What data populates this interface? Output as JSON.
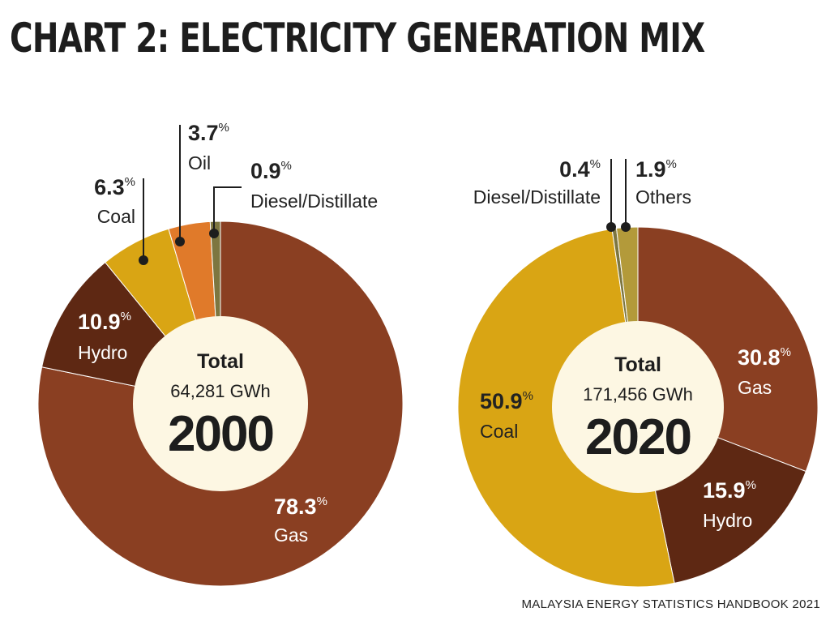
{
  "title": "CHART 2: ELECTRICITY GENERATION MIX",
  "source": "MALAYSIA ENERGY STATISTICS HANDBOOK 2021",
  "chart_data": [
    {
      "type": "pie",
      "year": "2000",
      "center_label": "Total",
      "total_label": "64,281 GWh",
      "series": [
        {
          "name": "Gas",
          "value": 78.3,
          "display": "78.3",
          "color": "#8a3f22"
        },
        {
          "name": "Hydro",
          "value": 10.9,
          "display": "10.9",
          "color": "#5e2813"
        },
        {
          "name": "Coal",
          "value": 6.3,
          "display": "6.3",
          "color": "#d9a514"
        },
        {
          "name": "Oil",
          "value": 3.7,
          "display": "3.7",
          "color": "#e07a2a"
        },
        {
          "name": "Diesel/Distillate",
          "value": 0.9,
          "display": "0.9",
          "color": "#7d7640"
        }
      ]
    },
    {
      "type": "pie",
      "year": "2020",
      "center_label": "Total",
      "total_label": "171,456 GWh",
      "series": [
        {
          "name": "Gas",
          "value": 30.8,
          "display": "30.8",
          "color": "#8a3f22"
        },
        {
          "name": "Hydro",
          "value": 15.9,
          "display": "15.9",
          "color": "#5e2813"
        },
        {
          "name": "Coal",
          "value": 50.9,
          "display": "50.9",
          "color": "#d9a514"
        },
        {
          "name": "Diesel/Distillate",
          "value": 0.4,
          "display": "0.4",
          "color": "#7d7640"
        },
        {
          "name": "Others",
          "value": 1.9,
          "display": "1.9",
          "color": "#b39a3a"
        }
      ]
    }
  ],
  "percent_sign": "%"
}
